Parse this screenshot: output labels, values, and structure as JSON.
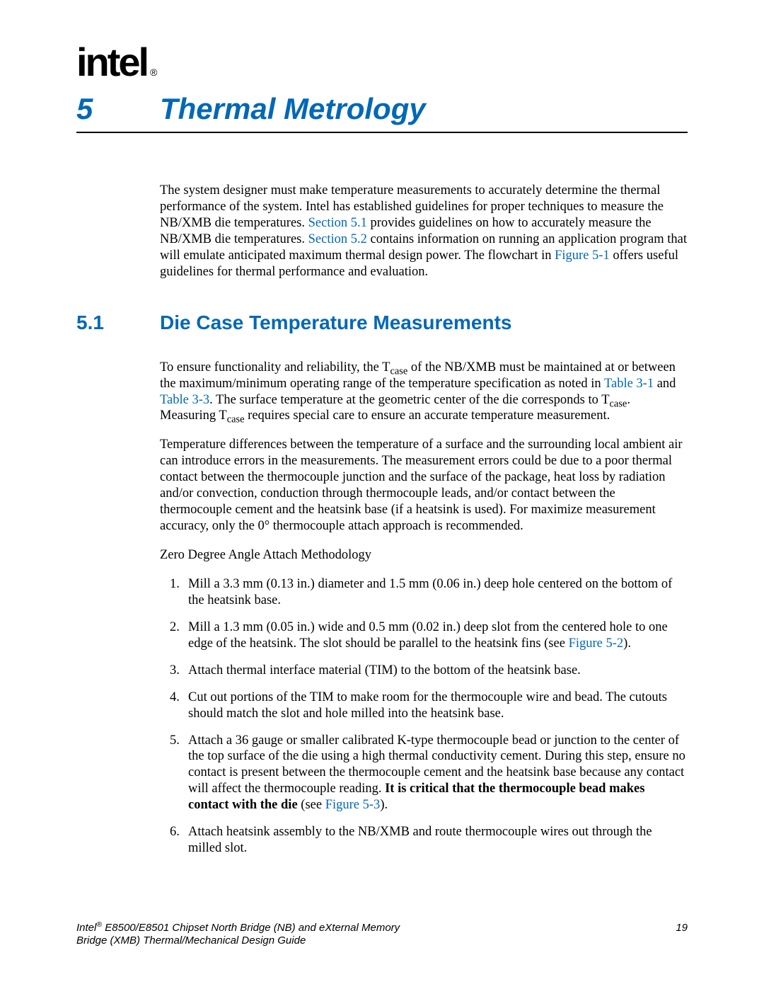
{
  "logo": {
    "text": "intel",
    "registered": "®"
  },
  "chapter": {
    "number": "5",
    "title": "Thermal Metrology"
  },
  "intro": {
    "pre1": "The system designer must make temperature measurements to accurately determine the thermal performance of the system. Intel has established guidelines for proper techniques to measure the NB/XMB die temperatures. ",
    "link1": "Section 5.1",
    "mid1": " provides guidelines on how to accurately measure the NB/XMB die temperatures. ",
    "link2": "Section 5.2",
    "mid2": " contains information on running an application program that will emulate anticipated maximum thermal design power. The flowchart in ",
    "link3": "Figure 5-1",
    "post": " offers useful guidelines for thermal performance and evaluation."
  },
  "section": {
    "number": "5.1",
    "title": "Die Case Temperature Measurements"
  },
  "p1": {
    "a": "To ensure functionality and reliability, the T",
    "sub1": "case",
    "b": " of the NB/XMB must be maintained at or between the maximum/minimum operating range of the temperature specification as noted in ",
    "link1": "Table 3-1",
    "c": " and ",
    "link2": "Table 3-3",
    "d": ". The surface temperature at the geometric center of the die corresponds to T",
    "sub2": "case",
    "e": ". Measuring T",
    "sub3": "case",
    "f": " requires special care to ensure an accurate temperature measurement."
  },
  "p2": "Temperature differences between the temperature of a surface and the surrounding local ambient air can introduce errors in the measurements. The measurement errors could be due to a poor thermal contact between the thermocouple junction and the surface of the package, heat loss by radiation and/or convection, conduction through thermocouple leads, and/or contact between the thermocouple cement and the heatsink base (if a heatsink is used). For maximize measurement accuracy, only the 0° thermocouple attach approach is recommended.",
  "p3": "Zero Degree Angle Attach Methodology",
  "steps": {
    "s1": "Mill a 3.3 mm (0.13 in.) diameter and 1.5 mm (0.06 in.) deep hole centered on the bottom of the heatsink base.",
    "s2a": "Mill a 1.3 mm (0.05 in.) wide and 0.5 mm (0.02 in.) deep slot from the centered hole to one edge of the heatsink. The slot should be parallel to the heatsink fins (see ",
    "s2link": "Figure 5-2",
    "s2b": ").",
    "s3": "Attach thermal interface material (TIM) to the bottom of the heatsink base.",
    "s4": "Cut out portions of the TIM to make room for the thermocouple wire and bead. The cutouts should match the slot and hole milled into the heatsink base.",
    "s5a": "Attach a 36 gauge or smaller calibrated K-type thermocouple bead or junction to the center of the top surface of the die using a high thermal conductivity cement. During this step, ensure no contact is present between the thermocouple cement and the heatsink base because any contact will affect the thermocouple reading. ",
    "s5bold": "It is critical that the thermocouple bead makes contact with the die",
    "s5b": " (see ",
    "s5link": "Figure 5-3",
    "s5c": ").",
    "s6": "Attach heatsink assembly to the NB/XMB and route thermocouple wires out through the milled slot."
  },
  "footer": {
    "left_pre": "Intel",
    "sup": "®",
    "left_rest": " E8500/E8501 Chipset North Bridge (NB) and eXternal Memory",
    "left_line2": "Bridge (XMB) Thermal/Mechanical Design Guide",
    "page": "19"
  },
  "colors": {
    "accent": "#0068b6",
    "text": "#000000",
    "bg": "#ffffff"
  }
}
